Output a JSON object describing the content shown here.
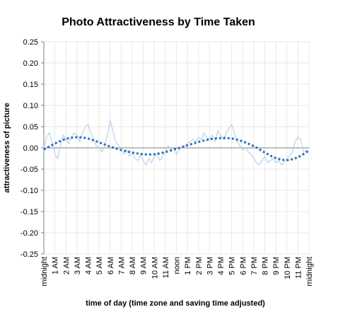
{
  "chart_data": {
    "type": "line",
    "title": "Photo Attractiveness by Time Taken",
    "xlabel": "time of day (time zone and saving time adjusted)",
    "ylabel": "attractiveness of picture",
    "ylim": [
      -0.25,
      0.25
    ],
    "yticks": [
      "0.25",
      "0.20",
      "0.15",
      "0.10",
      "0.05",
      "0.00",
      "-0.05",
      "-0.10",
      "-0.15",
      "-0.20",
      "-0.25"
    ],
    "ytick_values": [
      0.25,
      0.2,
      0.15,
      0.1,
      0.05,
      0.0,
      -0.05,
      -0.1,
      -0.15,
      -0.2,
      -0.25
    ],
    "categories": [
      "midnight",
      "1 AM",
      "2 AM",
      "3 AM",
      "4 AM",
      "5 AM",
      "6 AM",
      "7 AM",
      "8 AM",
      "9 AM",
      "10 AM",
      "11 AM",
      "noon",
      "1 PM",
      "2 PM",
      "3 PM",
      "4 PM",
      "5 PM",
      "6 PM",
      "7 PM",
      "8 PM",
      "9 PM",
      "10 PM",
      "11 PM",
      "midnight"
    ],
    "grid": true,
    "legend": "none",
    "series": [
      {
        "style": "raw",
        "color": "#b7d3ee",
        "x": [
          0,
          0.25,
          0.5,
          0.75,
          1,
          1.25,
          1.5,
          1.75,
          2,
          2.25,
          2.5,
          2.75,
          3,
          3.25,
          3.5,
          3.75,
          4,
          4.25,
          4.5,
          4.75,
          5,
          5.25,
          5.5,
          5.75,
          6,
          6.25,
          6.5,
          6.75,
          7,
          7.25,
          7.5,
          7.75,
          8,
          8.25,
          8.5,
          8.75,
          9,
          9.25,
          9.5,
          9.75,
          10,
          10.25,
          10.5,
          10.75,
          11,
          11.25,
          11.5,
          11.75,
          12,
          12.25,
          12.5,
          12.75,
          13,
          13.25,
          13.5,
          13.75,
          14,
          14.25,
          14.5,
          14.75,
          15,
          15.25,
          15.5,
          15.75,
          16,
          16.25,
          16.5,
          16.75,
          17,
          17.25,
          17.5,
          17.75,
          18,
          18.25,
          18.5,
          18.75,
          19,
          19.25,
          19.5,
          19.75,
          20,
          20.25,
          20.5,
          20.75,
          21,
          21.25,
          21.5,
          21.75,
          22,
          22.25,
          22.5,
          22.75,
          23,
          23.25,
          23.5,
          23.75,
          24
        ],
        "y": [
          0.0,
          0.025,
          0.035,
          0.015,
          -0.015,
          -0.025,
          0.005,
          0.03,
          0.02,
          0.01,
          0.025,
          0.035,
          0.03,
          0.015,
          0.035,
          0.05,
          0.055,
          0.035,
          0.02,
          0.005,
          0.0,
          -0.01,
          0.005,
          0.03,
          0.065,
          0.04,
          0.015,
          0.005,
          -0.005,
          -0.015,
          -0.005,
          -0.02,
          -0.01,
          -0.025,
          -0.03,
          -0.015,
          -0.03,
          -0.04,
          -0.025,
          -0.035,
          -0.02,
          -0.015,
          -0.03,
          -0.02,
          -0.01,
          0.005,
          -0.005,
          0.0,
          -0.015,
          -0.005,
          0.0,
          0.005,
          0.01,
          0.015,
          0.02,
          0.015,
          0.025,
          0.02,
          0.035,
          0.025,
          0.02,
          0.03,
          0.015,
          0.04,
          0.03,
          0.02,
          0.035,
          0.045,
          0.055,
          0.035,
          0.015,
          0.005,
          -0.005,
          0.0,
          -0.01,
          -0.015,
          -0.025,
          -0.035,
          -0.04,
          -0.03,
          -0.02,
          -0.035,
          -0.03,
          -0.025,
          -0.035,
          -0.03,
          -0.04,
          -0.035,
          -0.025,
          -0.02,
          -0.01,
          0.015,
          0.025,
          0.02,
          -0.01,
          -0.005,
          -0.01
        ]
      },
      {
        "style": "trend",
        "color": "#2e6fb8",
        "x": [
          0,
          1,
          2,
          3,
          4,
          5,
          6,
          7,
          8,
          9,
          10,
          11,
          12,
          13,
          14,
          15,
          16,
          17,
          18,
          19,
          20,
          21,
          22,
          23,
          24
        ],
        "y": [
          -0.004,
          0.01,
          0.021,
          0.025,
          0.022,
          0.013,
          0.003,
          -0.005,
          -0.011,
          -0.015,
          -0.015,
          -0.01,
          -0.002,
          0.006,
          0.014,
          0.02,
          0.023,
          0.022,
          0.015,
          0.004,
          -0.011,
          -0.024,
          -0.029,
          -0.022,
          -0.006
        ]
      }
    ]
  }
}
